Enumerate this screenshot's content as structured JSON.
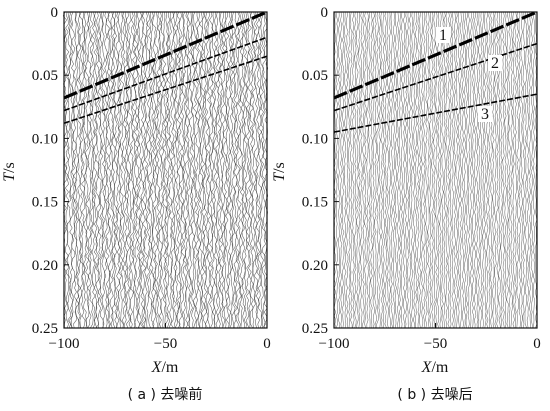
{
  "chart_data": [
    {
      "type": "seismic-gather",
      "caption": "( a ) 去噪前",
      "xlabel_var": "X",
      "xlabel_unit": "/m",
      "ylabel_var": "T",
      "ylabel_unit": "/s",
      "xlim": [
        -100,
        0
      ],
      "ylim": [
        0,
        0.25
      ],
      "x_ticks": [
        -100,
        -50,
        0
      ],
      "y_ticks": [
        "0",
        "0.05",
        "0.10",
        "0.15",
        "0.20",
        "0.25"
      ],
      "events": [
        {
          "x": [
            -100,
            0
          ],
          "t": [
            0.068,
            0.0
          ]
        },
        {
          "x": [
            -100,
            0
          ],
          "t": [
            0.078,
            0.02
          ]
        },
        {
          "x": [
            -100,
            0
          ],
          "t": [
            0.088,
            0.035
          ]
        }
      ]
    },
    {
      "type": "seismic-gather",
      "caption": "( b ) 去噪后",
      "xlabel_var": "X",
      "xlabel_unit": "/m",
      "ylabel_var": "T",
      "ylabel_unit": "/s",
      "xlim": [
        -100,
        0
      ],
      "ylim": [
        0,
        0.25
      ],
      "x_ticks": [
        -100,
        -50,
        0
      ],
      "y_ticks": [
        "0",
        "0.05",
        "0.10",
        "0.15",
        "0.20",
        "0.25"
      ],
      "events": [
        {
          "label": "1",
          "x": [
            -100,
            0
          ],
          "t": [
            0.068,
            0.0
          ]
        },
        {
          "label": "2",
          "x": [
            -100,
            0
          ],
          "t": [
            0.078,
            0.025
          ]
        },
        {
          "label": "3",
          "x": [
            -100,
            0
          ],
          "t": [
            0.095,
            0.065
          ]
        }
      ]
    }
  ]
}
